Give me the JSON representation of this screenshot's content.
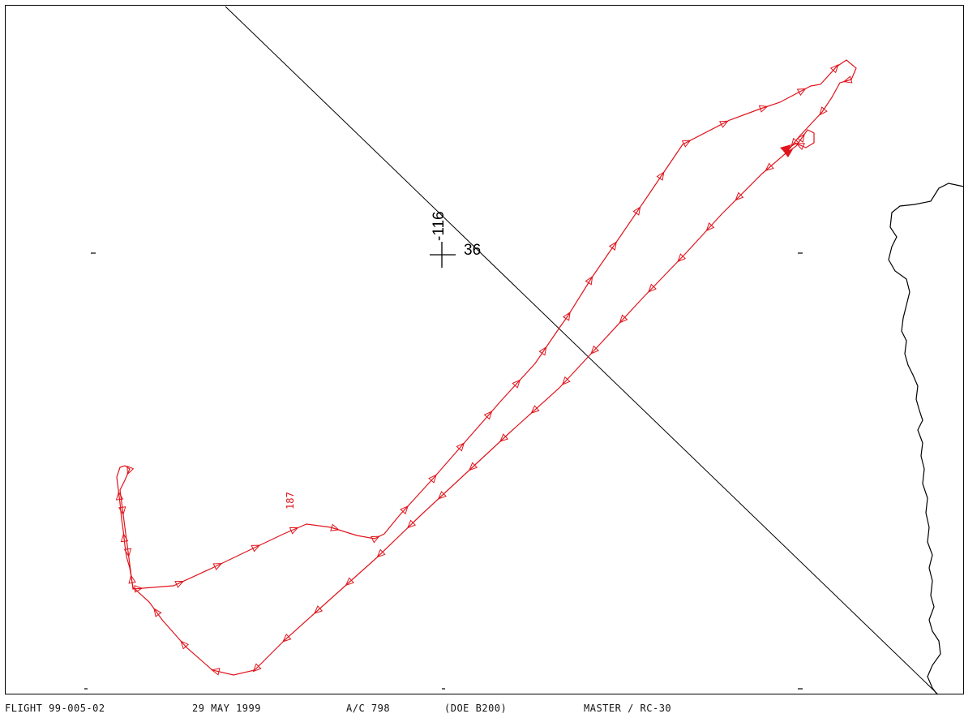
{
  "footer": {
    "flight": "FLIGHT 99-005-02",
    "date": "29 MAY 1999",
    "aircraft": "A/C 798",
    "operator": "(DOE B200)",
    "system": "MASTER / RC-30"
  },
  "map": {
    "center_longitude_label": "-116",
    "center_latitude_label": "36",
    "track_label": "187",
    "colors": {
      "track": "#e0141c",
      "line": "#000000",
      "coast": "#000000"
    }
  }
}
